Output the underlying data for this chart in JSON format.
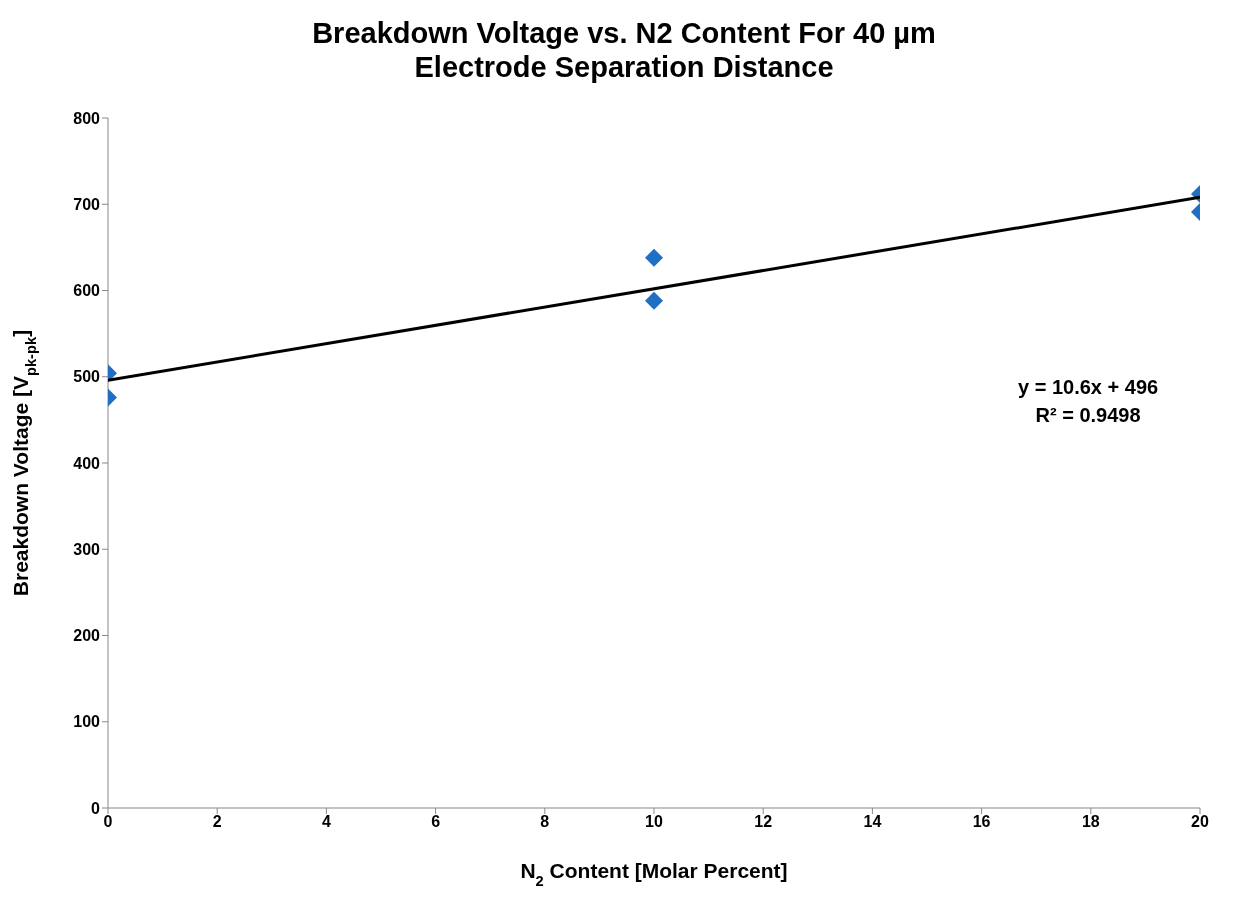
{
  "chart_data": {
    "type": "scatter",
    "title": "Breakdown Voltage vs. N2 Content For 40 µm Electrode Separation Distance",
    "xlabel": "N$_{2}$ Content [Molar Percent]",
    "ylabel": "Breakdown Voltage [V$_{pk-pk}$]",
    "series": [
      {
        "color": "#1f6fc5",
        "marker": "diamond",
        "x": [
          0,
          0,
          10,
          10,
          20,
          20
        ],
        "values": [
          504,
          476,
          638,
          588,
          712,
          691
        ]
      },
      {
        "type": "line",
        "color": "#000000",
        "marker": "none",
        "x": [
          0,
          20
        ],
        "values": [
          496,
          708
        ]
      }
    ],
    "xlim": [
      0,
      20
    ],
    "xticks": [
      0,
      2,
      4,
      6,
      8,
      10,
      12,
      14,
      16,
      18,
      20
    ],
    "ylim": [
      0,
      800
    ],
    "yticks": [
      0,
      100,
      200,
      300,
      400,
      500,
      600,
      700,
      800
    ],
    "grid": false,
    "legend": false,
    "annotations": [
      "y = 10.6x + 496",
      "R² = 0.9498"
    ]
  }
}
